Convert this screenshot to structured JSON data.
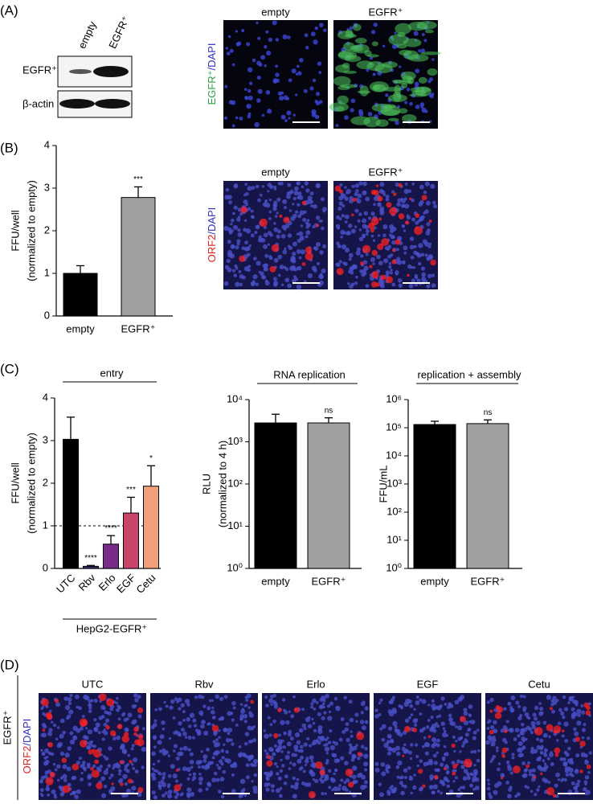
{
  "panel_labels": [
    "(A)",
    "(B)",
    "(C)",
    "(D)"
  ],
  "blot": {
    "lanes": [
      "empty",
      "EGFR⁺"
    ],
    "rows": [
      "EGFR⁺",
      "β-actin"
    ]
  },
  "images_a": {
    "columns": [
      "empty",
      "EGFR⁺"
    ],
    "stain": [
      "EGFR⁺",
      "/DAPI"
    ]
  },
  "images_b": {
    "columns": [
      "empty",
      "EGFR⁺"
    ],
    "stain": [
      "ORF2",
      "/DAPI"
    ]
  },
  "images_d": {
    "row": "EGFR⁺",
    "columns": [
      "UTC",
      "Rbv",
      "Erlo",
      "EGF",
      "Cetu"
    ],
    "stain": [
      "ORF2",
      "/DAPI"
    ]
  },
  "chart_data": [
    {
      "type": "bar",
      "ylabel": [
        "FFU/well",
        "(normalized to empty)"
      ],
      "categories": [
        "empty",
        "EGFR⁺"
      ],
      "values": [
        1,
        2.78
      ],
      "errors": [
        0.18,
        0.25
      ],
      "colors": [
        "#000000",
        "#a0a0a0"
      ],
      "annotations": [
        null,
        "***"
      ],
      "ylim": [
        0,
        4
      ],
      "yticks": [
        0,
        1,
        2,
        3,
        4
      ]
    },
    {
      "type": "bar",
      "title": "entry",
      "group_label": "HepG2-EGFR⁺",
      "ylabel": [
        "FFU/well",
        "(normalized to empty)"
      ],
      "categories": [
        "UTC",
        "Rbv",
        "Erlo",
        "EGF",
        "Cetu"
      ],
      "values": [
        3.03,
        0.05,
        0.57,
        1.3,
        1.93
      ],
      "errors": [
        0.52,
        0.02,
        0.2,
        0.37,
        0.48
      ],
      "colors": [
        "#000000",
        "#3b2a78",
        "#7a2a8a",
        "#c8456a",
        "#f2a07b"
      ],
      "annotations": [
        null,
        "****",
        "****",
        "***",
        "*"
      ],
      "reference_line": 1,
      "ylim": [
        0,
        4
      ],
      "yticks": [
        0,
        1,
        2,
        3,
        4
      ]
    },
    {
      "type": "bar",
      "title": "RNA replication",
      "ylabel": [
        "RLU",
        "(normalized to 4 h)"
      ],
      "log_scale": true,
      "categories": [
        "empty",
        "EGFR⁺"
      ],
      "values": [
        2800,
        2800
      ],
      "errors": [
        1700,
        900
      ],
      "colors": [
        "#000000",
        "#a0a0a0"
      ],
      "annotations": [
        null,
        "ns"
      ],
      "ylim": [
        1,
        10000
      ],
      "yticks": [
        {
          "value": 1,
          "label": "10⁰"
        },
        {
          "value": 10,
          "label": "10¹"
        },
        {
          "value": 100,
          "label": "10²"
        },
        {
          "value": 1000,
          "label": "10³"
        },
        {
          "value": 10000,
          "label": "10⁴"
        }
      ]
    },
    {
      "type": "bar",
      "title": "replication + assembly",
      "ylabel": [
        "FFU/mL"
      ],
      "log_scale": true,
      "categories": [
        "empty",
        "EGFR⁺"
      ],
      "values": [
        130000,
        140000
      ],
      "errors": [
        40000,
        50000
      ],
      "colors": [
        "#000000",
        "#a0a0a0"
      ],
      "annotations": [
        null,
        "ns"
      ],
      "ylim": [
        1,
        1000000
      ],
      "yticks": [
        {
          "value": 1,
          "label": "10⁰"
        },
        {
          "value": 10,
          "label": "10¹"
        },
        {
          "value": 100,
          "label": "10²"
        },
        {
          "value": 1000,
          "label": "10³"
        },
        {
          "value": 10000,
          "label": "10⁴"
        },
        {
          "value": 100000,
          "label": "10⁵"
        },
        {
          "value": 1000000,
          "label": "10⁶"
        }
      ]
    }
  ]
}
